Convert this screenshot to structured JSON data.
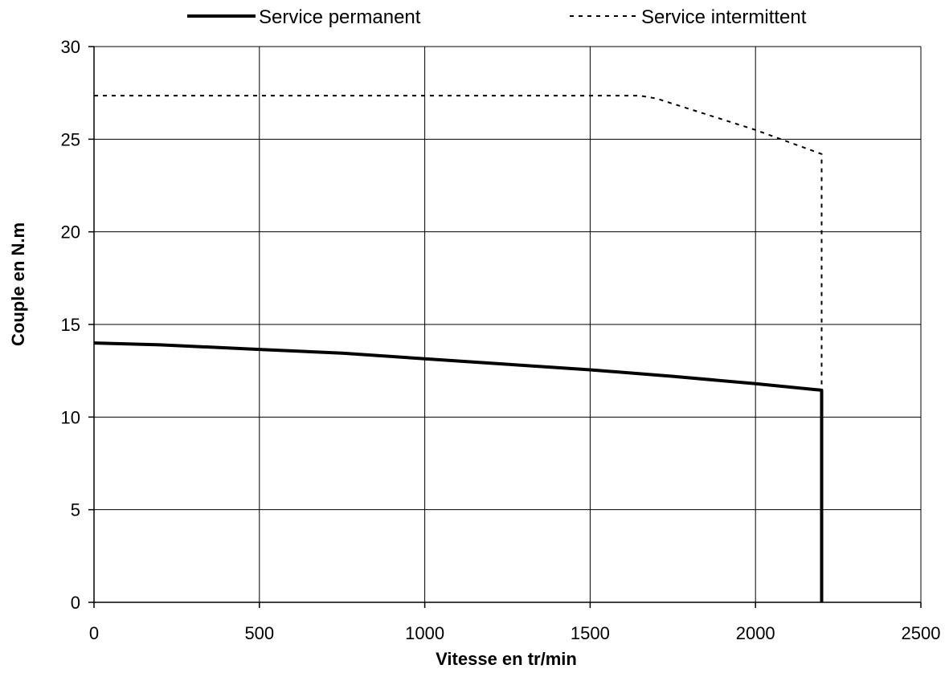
{
  "chart_data": {
    "type": "line",
    "title": "",
    "xlabel": "Vitesse en tr/min",
    "ylabel": "Couple en N.m",
    "xlim": [
      0,
      2500
    ],
    "ylim": [
      0,
      30
    ],
    "x_ticks": [
      0,
      500,
      1000,
      1500,
      2000,
      2500
    ],
    "y_ticks": [
      0,
      5,
      10,
      15,
      20,
      25,
      30
    ],
    "x_tick_labels": [
      "0",
      "500",
      "1000",
      "1500",
      "2000",
      "2500"
    ],
    "y_tick_labels": [
      "0",
      "5",
      "10",
      "15",
      "20",
      "25",
      "30"
    ],
    "grid": true,
    "legend_position": "top",
    "series": [
      {
        "name": "Service permanent",
        "style": "solid",
        "color": "#000000",
        "points": [
          {
            "x": 0,
            "y": 14.0
          },
          {
            "x": 200,
            "y": 13.9
          },
          {
            "x": 500,
            "y": 13.65
          },
          {
            "x": 750,
            "y": 13.45
          },
          {
            "x": 1000,
            "y": 13.15
          },
          {
            "x": 1250,
            "y": 12.85
          },
          {
            "x": 1500,
            "y": 12.55
          },
          {
            "x": 1750,
            "y": 12.2
          },
          {
            "x": 2000,
            "y": 11.8
          },
          {
            "x": 2200,
            "y": 11.45
          },
          {
            "x": 2200,
            "y": 0
          }
        ]
      },
      {
        "name": "Service intermittent",
        "style": "dashed",
        "color": "#000000",
        "points": [
          {
            "x": 0,
            "y": 27.35
          },
          {
            "x": 1650,
            "y": 27.35
          },
          {
            "x": 1700,
            "y": 27.2
          },
          {
            "x": 2000,
            "y": 25.5
          },
          {
            "x": 2200,
            "y": 24.2
          },
          {
            "x": 2200,
            "y": 11.45
          }
        ]
      }
    ]
  }
}
